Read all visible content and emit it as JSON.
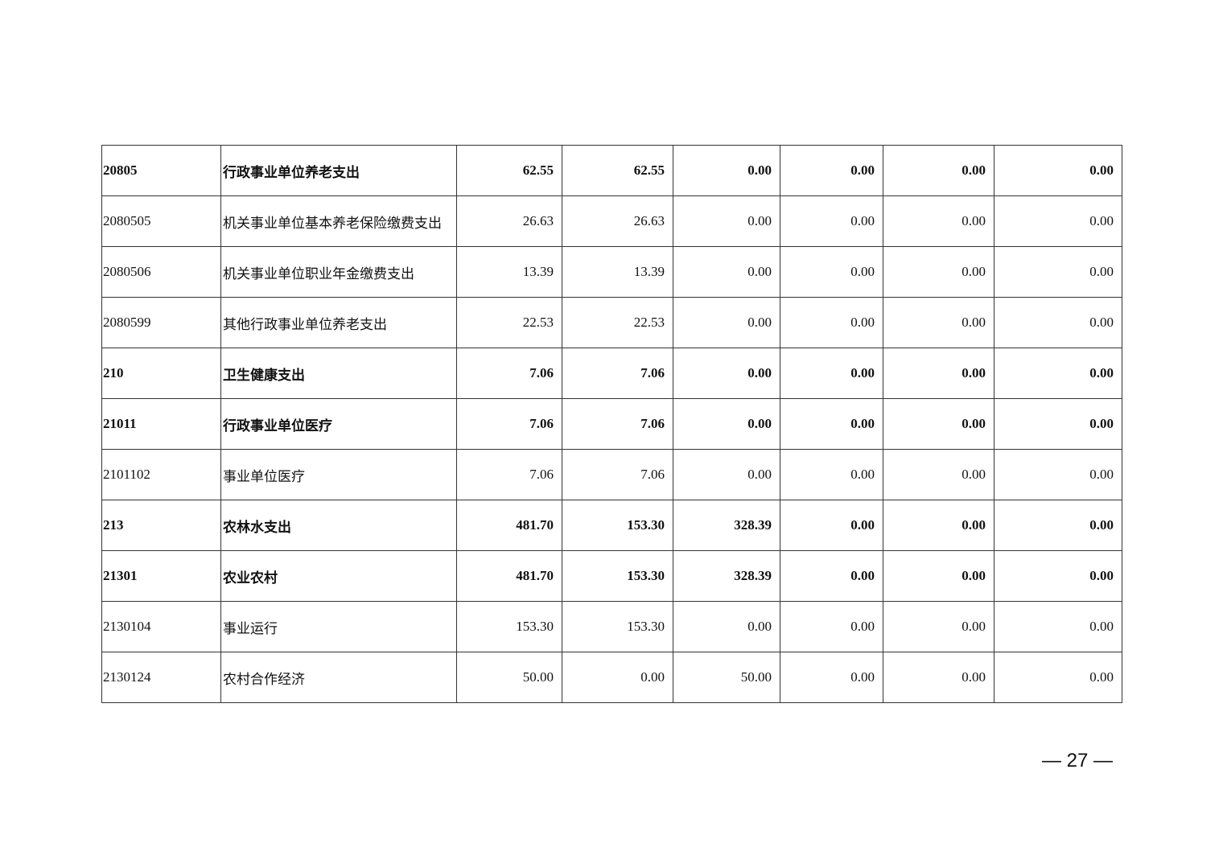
{
  "table": {
    "rows": [
      {
        "bold": true,
        "cells": [
          "20805",
          "行政事业单位养老支出",
          "62.55",
          "62.55",
          "0.00",
          "0.00",
          "0.00",
          "0.00"
        ]
      },
      {
        "bold": false,
        "cells": [
          "2080505",
          "机关事业单位基本养老保险缴费支出",
          "26.63",
          "26.63",
          "0.00",
          "0.00",
          "0.00",
          "0.00"
        ]
      },
      {
        "bold": false,
        "cells": [
          "2080506",
          "机关事业单位职业年金缴费支出",
          "13.39",
          "13.39",
          "0.00",
          "0.00",
          "0.00",
          "0.00"
        ]
      },
      {
        "bold": false,
        "cells": [
          "2080599",
          "其他行政事业单位养老支出",
          "22.53",
          "22.53",
          "0.00",
          "0.00",
          "0.00",
          "0.00"
        ]
      },
      {
        "bold": true,
        "cells": [
          "210",
          "卫生健康支出",
          "7.06",
          "7.06",
          "0.00",
          "0.00",
          "0.00",
          "0.00"
        ]
      },
      {
        "bold": true,
        "cells": [
          "21011",
          "行政事业单位医疗",
          "7.06",
          "7.06",
          "0.00",
          "0.00",
          "0.00",
          "0.00"
        ]
      },
      {
        "bold": false,
        "cells": [
          "2101102",
          "事业单位医疗",
          "7.06",
          "7.06",
          "0.00",
          "0.00",
          "0.00",
          "0.00"
        ]
      },
      {
        "bold": true,
        "cells": [
          "213",
          "农林水支出",
          "481.70",
          "153.30",
          "328.39",
          "0.00",
          "0.00",
          "0.00"
        ]
      },
      {
        "bold": true,
        "cells": [
          "21301",
          "农业农村",
          "481.70",
          "153.30",
          "328.39",
          "0.00",
          "0.00",
          "0.00"
        ]
      },
      {
        "bold": false,
        "cells": [
          "2130104",
          "事业运行",
          "153.30",
          "153.30",
          "0.00",
          "0.00",
          "0.00",
          "0.00"
        ]
      },
      {
        "bold": false,
        "cells": [
          "2130124",
          "农村合作经济",
          "50.00",
          "0.00",
          "50.00",
          "0.00",
          "0.00",
          "0.00"
        ]
      }
    ]
  },
  "footer": {
    "page_number": "— 27 —"
  }
}
